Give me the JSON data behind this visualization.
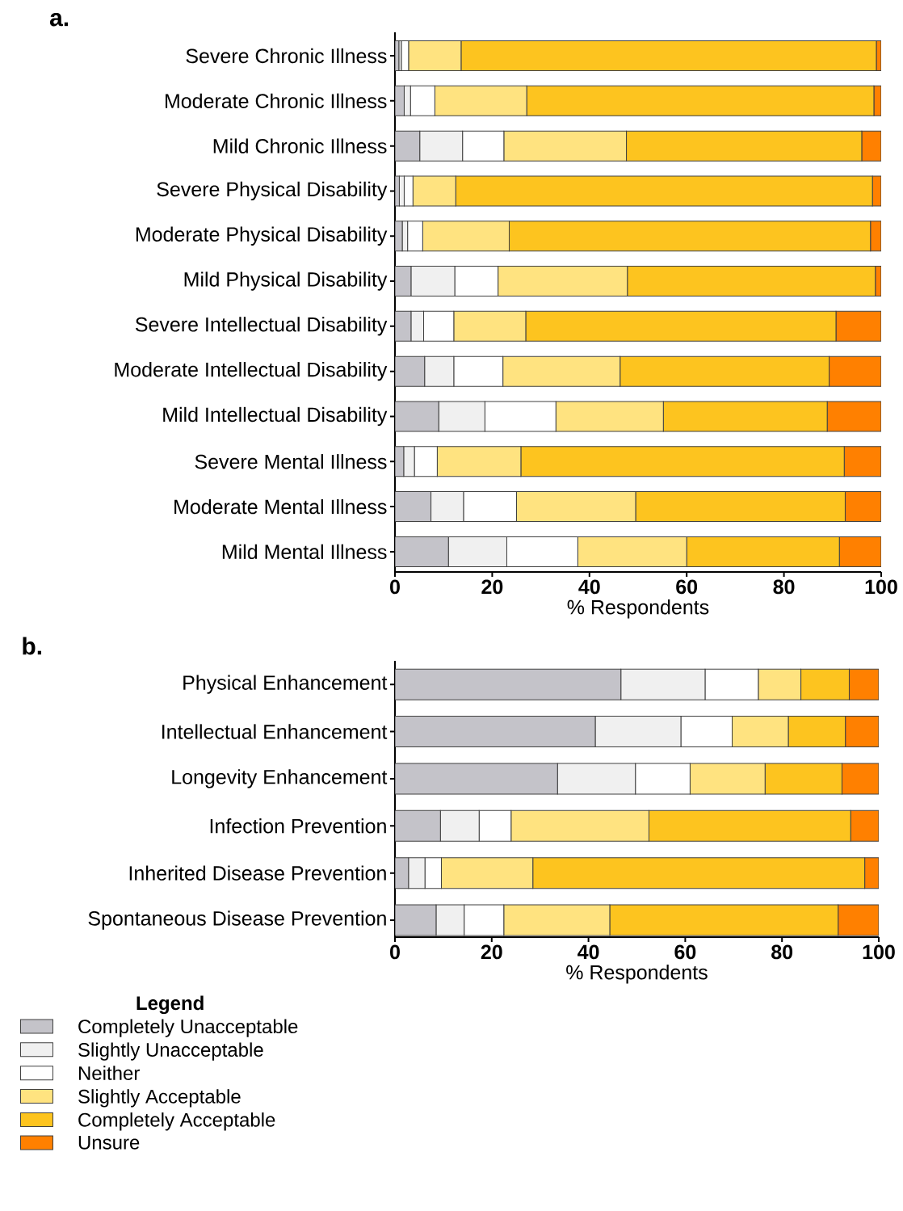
{
  "chart_data": [
    {
      "type": "bar",
      "title": "a.",
      "orientation": "horizontal",
      "stacked": true,
      "xlabel": "% Respondents",
      "xlim": [
        0,
        100
      ],
      "xticks": [
        0,
        20,
        40,
        60,
        80,
        100
      ],
      "categories": [
        "Severe  Chronic Illness",
        "Moderate Chronic Illness",
        "Mild Chronic Illness",
        "Severe  Physical Disability",
        "Moderate Physical Disability",
        "Mild Physical Disability",
        "Severe  Intellectual Disability",
        "Moderate Intellectual Disability",
        "Mild Intellectual Disability",
        "Severe  Mental Illness",
        "Moderate Mental Illness",
        "Mild Mental Illness"
      ],
      "series": [
        {
          "color": "#c4c3c9",
          "values": [
            0.8,
            1.9,
            5.1,
            0.9,
            1.5,
            3.3,
            3.3,
            6.1,
            9.0,
            1.8,
            7.4,
            11.0
          ]
        },
        {
          "color": "#f0f0f0",
          "values": [
            0.5,
            1.3,
            8.8,
            1.0,
            1.1,
            9.0,
            2.6,
            6.0,
            9.5,
            2.2,
            6.7,
            12.0
          ]
        },
        {
          "color": "#ffffff",
          "values": [
            1.5,
            5.0,
            8.5,
            1.8,
            3.1,
            8.9,
            6.2,
            10.1,
            14.6,
            4.7,
            10.9,
            14.6
          ]
        },
        {
          "color": "#ffe380",
          "values": [
            10.8,
            18.9,
            25.2,
            8.8,
            17.8,
            26.6,
            14.8,
            24.1,
            22.1,
            17.2,
            24.5,
            22.4
          ]
        },
        {
          "color": "#fdc41f",
          "values": [
            85.4,
            71.4,
            48.4,
            85.7,
            74.3,
            51.0,
            63.8,
            43.0,
            33.7,
            66.5,
            43.1,
            31.4
          ]
        },
        {
          "color": "#ff8000",
          "values": [
            1.0,
            1.5,
            4.0,
            1.8,
            2.2,
            1.2,
            9.3,
            10.7,
            11.1,
            7.6,
            7.4,
            8.6
          ]
        }
      ]
    },
    {
      "type": "bar",
      "title": "b.",
      "orientation": "horizontal",
      "stacked": true,
      "xlabel": "% Respondents",
      "xlim": [
        0,
        100
      ],
      "xticks": [
        0,
        20,
        40,
        60,
        80,
        100
      ],
      "legend": "bottom left",
      "legend_title": "Legend",
      "categories": [
        "Physical Enhancement",
        "Intellectual Enhancement",
        "Longevity  Enhancement",
        "Infection Prevention",
        "Inherited Disease Prevention",
        "Spontaneous  Disease Prevention"
      ],
      "series": [
        {
          "name": "Completely  Unacceptable",
          "color": "#c4c3c9",
          "values": [
            46.7,
            41.4,
            33.6,
            9.4,
            2.8,
            8.5
          ]
        },
        {
          "name": "Slightly  Unacceptable",
          "color": "#f0f0f0",
          "values": [
            17.4,
            17.7,
            16.1,
            8.0,
            3.4,
            5.8
          ]
        },
        {
          "name": "Neither",
          "color": "#ffffff",
          "values": [
            11.0,
            10.6,
            11.3,
            6.6,
            3.4,
            8.2
          ]
        },
        {
          "name": "Slightly  Acceptable",
          "color": "#ffe380",
          "values": [
            8.8,
            11.6,
            15.5,
            28.5,
            18.9,
            21.9
          ]
        },
        {
          "name": "Completely  Acceptable",
          "color": "#fdc41f",
          "values": [
            10.0,
            11.8,
            15.9,
            41.7,
            68.6,
            47.2
          ]
        },
        {
          "name": "Unsure",
          "color": "#ff8000",
          "values": [
            6.1,
            6.9,
            7.6,
            5.8,
            2.9,
            8.4
          ]
        }
      ]
    }
  ]
}
